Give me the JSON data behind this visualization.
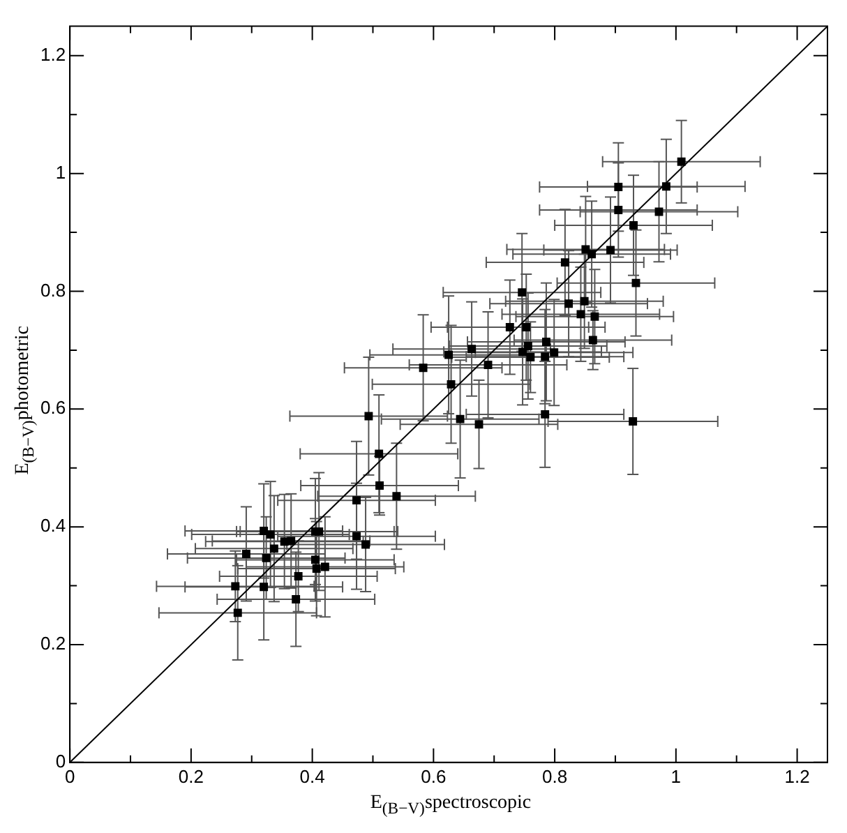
{
  "chart_data": {
    "type": "scatter",
    "xlabel": "E$_{(B−V)}$spectroscopic",
    "ylabel": "E$_{(B−V)}$photometric",
    "xlim": [
      0,
      1.25
    ],
    "ylim": [
      0,
      1.25
    ],
    "xticks": [
      0,
      {
        "value": 0.1,
        "label": null
      },
      0.2,
      {
        "value": 0.3,
        "label": null
      },
      0.4,
      {
        "value": 0.5,
        "label": null
      },
      0.6,
      {
        "value": 0.7,
        "label": null
      },
      0.8,
      {
        "value": 0.9,
        "label": null
      },
      1,
      {
        "value": 1.1,
        "label": null
      },
      1.2
    ],
    "yticks": [
      0,
      {
        "value": 0.1,
        "label": null
      },
      0.2,
      {
        "value": 0.3,
        "label": null
      },
      0.4,
      {
        "value": 0.5,
        "label": null
      },
      0.6,
      {
        "value": 0.7,
        "label": null
      },
      0.8,
      {
        "value": 0.9,
        "label": null
      },
      1,
      {
        "value": 1.1,
        "label": null
      },
      1.2
    ],
    "grid": false,
    "legend": false,
    "marker": "square",
    "series": [
      {
        "color": "#000000",
        "x": [
          1.009,
          0.905,
          0.984,
          0.905,
          0.972,
          0.93,
          0.817,
          0.851,
          0.861,
          0.892,
          0.934,
          0.746,
          0.823,
          0.849,
          0.843,
          0.866,
          0.726,
          0.753,
          0.863,
          0.786,
          0.747,
          0.756,
          0.76,
          0.784,
          0.799,
          0.663,
          0.625,
          0.69,
          0.583,
          0.629,
          0.493,
          0.644,
          0.675,
          0.784,
          0.929,
          0.51,
          0.511,
          0.539,
          0.473,
          0.473,
          0.488,
          0.32,
          0.331,
          0.405,
          0.411,
          0.354,
          0.365,
          0.337,
          0.291,
          0.324,
          0.405,
          0.407,
          0.421,
          0.377,
          0.273,
          0.32,
          0.373,
          0.277
        ],
        "values": [
          1.02,
          0.977,
          0.978,
          0.938,
          0.935,
          0.912,
          0.849,
          0.871,
          0.863,
          0.87,
          0.814,
          0.798,
          0.779,
          0.783,
          0.761,
          0.757,
          0.739,
          0.739,
          0.717,
          0.714,
          0.697,
          0.707,
          0.688,
          0.689,
          0.696,
          0.702,
          0.692,
          0.675,
          0.67,
          0.642,
          0.588,
          0.583,
          0.574,
          0.591,
          0.579,
          0.524,
          0.47,
          0.452,
          0.445,
          0.384,
          0.37,
          0.393,
          0.387,
          0.392,
          0.392,
          0.375,
          0.376,
          0.363,
          0.354,
          0.347,
          0.344,
          0.329,
          0.332,
          0.316,
          0.299,
          0.298,
          0.277,
          0.254
        ],
        "xerrors": [
          0.13,
          0.13,
          0.13,
          0.13,
          0.13,
          0.13,
          0.13,
          0.13,
          0.13,
          0.11,
          0.13,
          0.13,
          0.13,
          0.13,
          0.13,
          0.13,
          0.13,
          0.13,
          0.13,
          0.13,
          0.13,
          0.13,
          0.13,
          0.13,
          0.13,
          0.13,
          0.13,
          0.13,
          0.13,
          0.13,
          0.13,
          0.13,
          0.13,
          0.13,
          0.14,
          0.13,
          0.13,
          0.13,
          0.13,
          0.13,
          0.13,
          0.13,
          0.13,
          0.13,
          0.13,
          0.13,
          0.13,
          0.13,
          0.13,
          0.13,
          0.13,
          0.13,
          0.13,
          0.13,
          0.13,
          0.13,
          0.13,
          0.13
        ],
        "errors": [
          0.07,
          0.075,
          0.08,
          0.08,
          0.085,
          0.085,
          0.09,
          0.09,
          0.09,
          0.09,
          0.09,
          0.1,
          0.09,
          0.08,
          0.08,
          0.08,
          0.08,
          0.09,
          0.05,
          0.1,
          0.09,
          0.09,
          0.06,
          0.08,
          0.09,
          0.08,
          0.1,
          0.09,
          0.09,
          0.1,
          0.1,
          0.1,
          0.075,
          0.09,
          0.09,
          0.1,
          0.05,
          0.09,
          0.1,
          0.09,
          0.08,
          0.08,
          0.09,
          0.09,
          0.1,
          0.08,
          0.08,
          0.09,
          0.08,
          0.07,
          0.07,
          0.08,
          0.085,
          0.06,
          0.06,
          0.09,
          0.08,
          0.08
        ]
      },
      {
        "type": "line",
        "color": "#000000",
        "marker": "none",
        "line_style": "solid",
        "x": [
          0,
          1.25
        ],
        "values": [
          0,
          1.25
        ]
      }
    ]
  }
}
